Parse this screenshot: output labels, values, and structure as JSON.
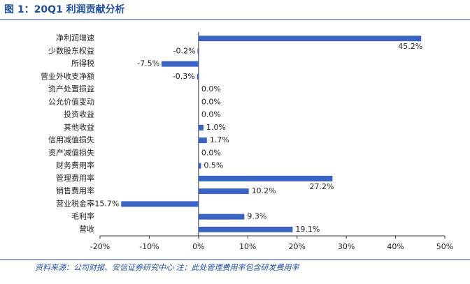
{
  "chart_data": {
    "type": "barh",
    "title": "图 1：20Q1 利润贡献分析",
    "source": "资料来源：公司财报、安信证券研究中心 注：此处管理费用率包含研发费用率",
    "categories": [
      "净利润增速",
      "少数股东权益",
      "所得税",
      "营业外收支净额",
      "资产处置损益",
      "公允价值变动",
      "投资收益",
      "其他收益",
      "信用减值损失",
      "资产减值损失",
      "财务费用率",
      "管理费用率",
      "销售费用率",
      "营业税金率",
      "毛利率",
      "营收"
    ],
    "values": [
      45.2,
      -0.2,
      -7.5,
      -0.3,
      0.0,
      0.0,
      0.0,
      1.0,
      1.7,
      0.0,
      0.5,
      27.2,
      10.2,
      -15.7,
      9.3,
      19.1
    ],
    "value_labels": [
      "45.2%",
      "-0.2%",
      "-7.5%",
      "-0.3%",
      "0.0%",
      "0.0%",
      "0.0%",
      "1.0%",
      "1.7%",
      "0.0%",
      "0.5%",
      "27.2%",
      "10.2%",
      "-15.7%",
      "9.3%",
      "19.1%"
    ],
    "color": "#3a63c4",
    "xlim": [
      -20,
      50
    ],
    "xticks": [
      {
        "value": -20,
        "label": "-20%"
      },
      {
        "value": -10,
        "label": "-10%"
      },
      {
        "value": 0,
        "label": "0%"
      },
      {
        "value": 10,
        "label": "10%"
      },
      {
        "value": 20,
        "label": "20%"
      },
      {
        "value": 30,
        "label": "30%"
      },
      {
        "value": 40,
        "label": "40%"
      },
      {
        "value": 50,
        "label": "50%"
      }
    ],
    "grid": false
  }
}
